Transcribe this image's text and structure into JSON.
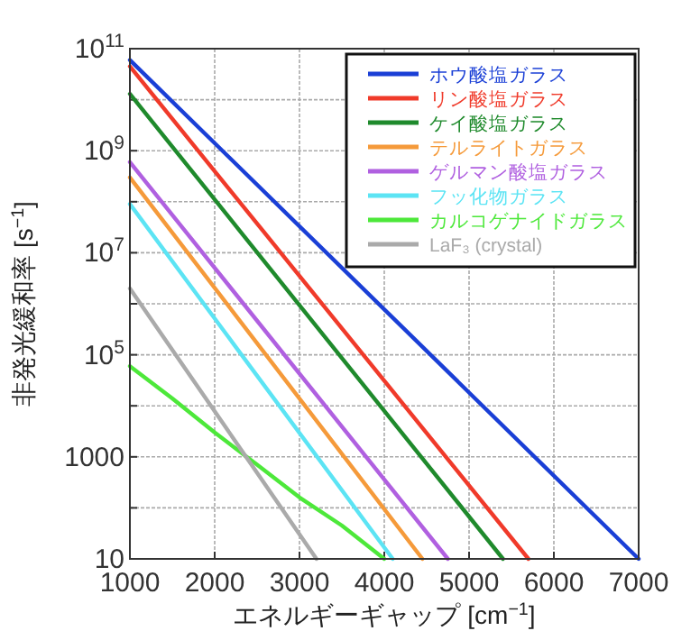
{
  "chart_data": {
    "type": "line",
    "xlabel": "エネルギーギャップ [cm$^{−1}$]",
    "ylabel": "非発光緩和率 [s$^{−1}$]",
    "log": "y",
    "grid": true,
    "legend": "top right",
    "line_style": "solid",
    "xlim": [
      1000,
      7000
    ],
    "xticks": [
      1000,
      2000,
      3000,
      4000,
      5000,
      6000,
      7000
    ],
    "ylim": [
      10,
      100000000000
    ],
    "yticks": [
      10,
      {
        "value": 100,
        "label": null
      },
      1000,
      {
        "value": 10000,
        "label": null
      },
      {
        "value": 100000,
        "label": "10$^{5}$"
      },
      {
        "value": 1000000,
        "label": null
      },
      {
        "value": 10000000,
        "label": "10$^{7}$"
      },
      {
        "value": 100000000,
        "label": null
      },
      {
        "value": 1000000000,
        "label": "10$^{9}$"
      },
      {
        "value": 10000000000,
        "label": null
      },
      {
        "value": 100000000000,
        "label": "10$^{11}$"
      }
    ],
    "series": [
      {
        "name": "ホウ酸塩ガラス",
        "color": "#1a3fd6",
        "x": [
          1000,
          7000
        ],
        "values": [
          60000000000,
          10
        ]
      },
      {
        "name": "リン酸塩ガラス",
        "color": "#f03a2a",
        "x": [
          1000,
          5700
        ],
        "values": [
          45000000000,
          10
        ]
      },
      {
        "name": "ケイ酸塩ガラス",
        "color": "#1f8a2c",
        "x": [
          1000,
          5400
        ],
        "values": [
          13000000000,
          10
        ]
      },
      {
        "name": "テルライトガラス",
        "color": "#f59a3a",
        "x": [
          1000,
          4450
        ],
        "values": [
          300000000,
          10
        ]
      },
      {
        "name": "ゲルマン酸塩ガラス",
        "color": "#b060e0",
        "x": [
          1000,
          4750
        ],
        "values": [
          600000000,
          10
        ]
      },
      {
        "name": "フッ化物ガラス",
        "color": "#5ce4f4",
        "x": [
          1000,
          4100
        ],
        "values": [
          90000000,
          10
        ]
      },
      {
        "name": "カルコゲナイドガラス",
        "color": "#4de83a",
        "x": [
          1000,
          1500,
          2000,
          2500,
          3000,
          3500,
          4000
        ],
        "values": [
          60000,
          14000,
          3000,
          700,
          160,
          45,
          10
        ]
      },
      {
        "name": "LaF₃ (crystal)",
        "color": "#aaaaaa",
        "x": [
          1000,
          3200
        ],
        "values": [
          2000000,
          10
        ]
      }
    ]
  }
}
